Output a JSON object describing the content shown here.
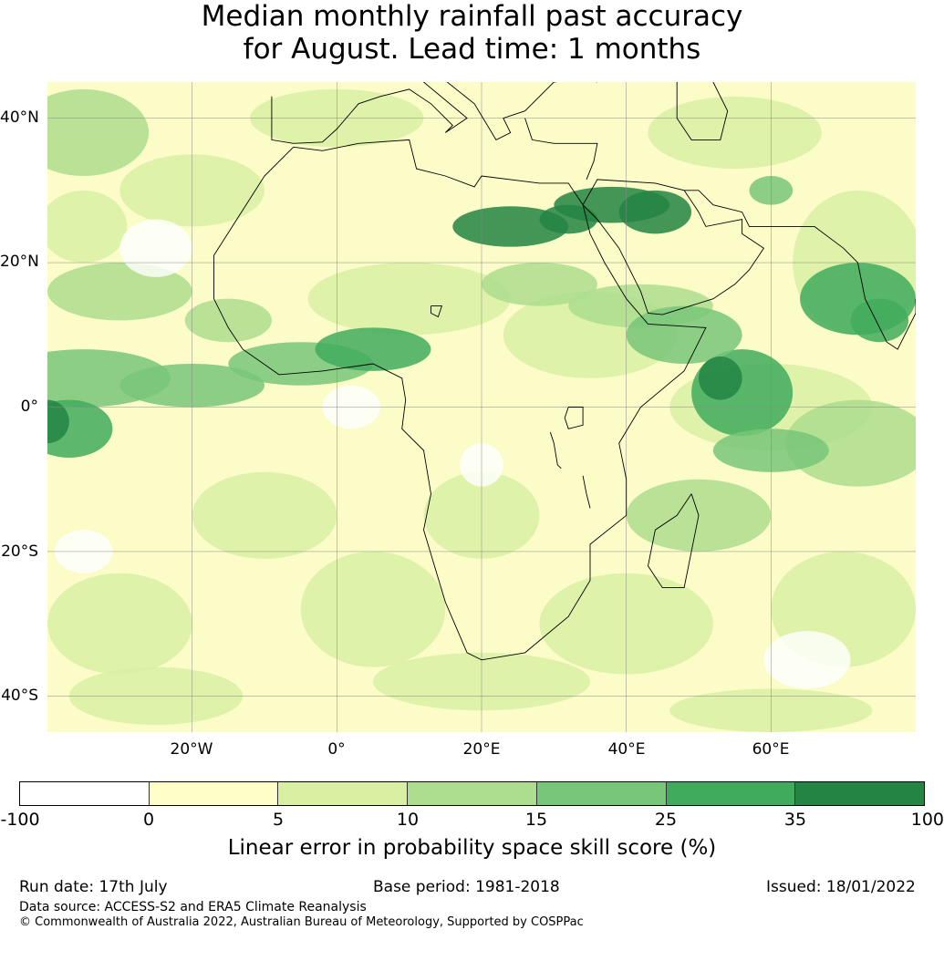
{
  "title": {
    "line1": "Median monthly rainfall past accuracy",
    "line2": "for August. Lead time: 1 months"
  },
  "map": {
    "lat_labels": [
      "40°N",
      "20°N",
      "0°",
      "20°S",
      "40°S"
    ],
    "lon_labels": [
      "20°W",
      "0°",
      "20°E",
      "40°E",
      "60°E"
    ],
    "lon_range": [
      -40,
      80
    ],
    "lat_range": [
      -45,
      45
    ],
    "grid": true,
    "base_color": "#fbfcc8",
    "coast_color": "#000000"
  },
  "colorbar": {
    "colors": [
      "#ffffff",
      "#fefec8",
      "#d9f0a3",
      "#addd8e",
      "#78c679",
      "#41ab5d",
      "#238443"
    ],
    "ticks": [
      "-100",
      "0",
      "5",
      "10",
      "15",
      "25",
      "35",
      "100"
    ],
    "label": "Linear error in probability space skill score (%)"
  },
  "footer": {
    "run_date": "Run date: 17th July",
    "base_period": "Base period: 1981-2018",
    "issued": "Issued: 18/01/2022",
    "data_source": "Data source: ACCESS-S2 and ERA5 Climate Reanalysis",
    "copyright": "© Commonwealth of Australia 2022, Australian Bureau of Meteorology, Supported by COSPPac"
  }
}
